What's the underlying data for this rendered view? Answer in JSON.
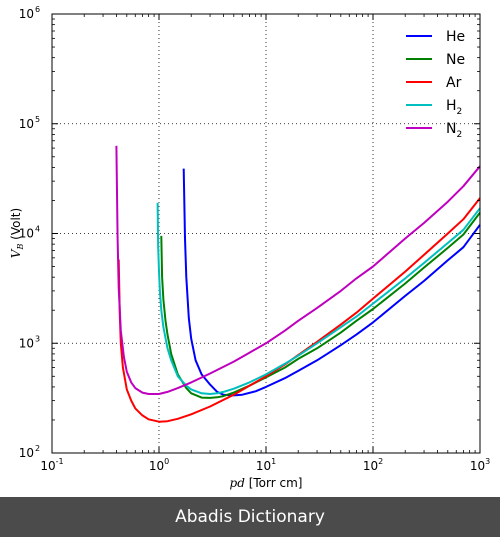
{
  "chart_data": {
    "type": "line",
    "title": "",
    "xlabel_var": "pd",
    "xlabel_unit": " [Torr cm]",
    "ylabel_var": "V",
    "ylabel_sub": "B",
    "ylabel_unit": " (Volt)",
    "xscale": "log",
    "yscale": "log",
    "xlim": [
      0.1,
      1000
    ],
    "ylim": [
      100,
      1000000
    ],
    "x_tick_base": "10",
    "x_tick_exps": [
      "-1",
      "0",
      "1",
      "2",
      "3"
    ],
    "y_tick_base": "10",
    "y_tick_exps": [
      "2",
      "3",
      "4",
      "5",
      "6"
    ],
    "grid": true,
    "legend_position": "top-right",
    "series": [
      {
        "name": "He",
        "sub": "",
        "color": "#0000ff",
        "x": [
          1.7,
          1.75,
          1.8,
          1.9,
          2.0,
          2.2,
          2.5,
          3.0,
          3.5,
          4.0,
          5.0,
          6.0,
          8.0,
          10,
          15,
          20,
          30,
          50,
          70,
          100,
          200,
          300,
          500,
          700,
          1000
        ],
        "y": [
          39000,
          9000,
          4000,
          1700,
          1100,
          700,
          520,
          420,
          360,
          340,
          335,
          340,
          365,
          400,
          480,
          560,
          700,
          960,
          1200,
          1550,
          2700,
          3700,
          5700,
          7500,
          12000
        ]
      },
      {
        "name": "Ne",
        "sub": "",
        "color": "#008000",
        "x": [
          1.05,
          1.07,
          1.1,
          1.15,
          1.2,
          1.3,
          1.5,
          1.8,
          2.0,
          2.5,
          3.0,
          3.5,
          4.0,
          5.0,
          7.0,
          10,
          15,
          20,
          30,
          50,
          70,
          100,
          200,
          300,
          500,
          700,
          1000
        ],
        "y": [
          9500,
          4000,
          2500,
          1600,
          1200,
          800,
          520,
          390,
          350,
          320,
          318,
          322,
          330,
          355,
          410,
          490,
          600,
          720,
          900,
          1250,
          1600,
          2050,
          3500,
          4900,
          7400,
          9800,
          15500
        ]
      },
      {
        "name": "Ar",
        "sub": "",
        "color": "#ff0000",
        "x": [
          0.42,
          0.43,
          0.44,
          0.46,
          0.5,
          0.55,
          0.6,
          0.7,
          0.8,
          1.0,
          1.2,
          1.5,
          2.0,
          3.0,
          5.0,
          7.0,
          10,
          15,
          20,
          30,
          50,
          70,
          100,
          200,
          300,
          500,
          700,
          1000
        ],
        "y": [
          5800,
          1800,
          1000,
          600,
          380,
          300,
          255,
          220,
          203,
          193,
          195,
          205,
          225,
          265,
          340,
          410,
          500,
          640,
          780,
          1030,
          1480,
          1900,
          2550,
          4500,
          6400,
          10000,
          13500,
          21000
        ]
      },
      {
        "name": "H",
        "sub": "2",
        "color": "#00bfbf",
        "x": [
          0.97,
          0.98,
          1.0,
          1.02,
          1.05,
          1.1,
          1.2,
          1.3,
          1.5,
          1.8,
          2.0,
          2.5,
          3.0,
          3.5,
          4.0,
          5.0,
          7.0,
          10,
          15,
          20,
          30,
          50,
          70,
          100,
          200,
          300,
          500,
          700,
          1000
        ],
        "y": [
          19000,
          8000,
          4500,
          3000,
          2000,
          1400,
          900,
          700,
          500,
          410,
          380,
          350,
          345,
          350,
          360,
          385,
          440,
          520,
          650,
          770,
          1000,
          1400,
          1750,
          2300,
          3900,
          5400,
          8200,
          10800,
          17000
        ]
      },
      {
        "name": "N",
        "sub": "2",
        "color": "#bf00bf",
        "x": [
          0.4,
          0.41,
          0.42,
          0.44,
          0.47,
          0.5,
          0.55,
          0.6,
          0.7,
          0.8,
          1.0,
          1.2,
          1.5,
          2.0,
          3.0,
          5.0,
          7.0,
          10,
          15,
          20,
          30,
          50,
          70,
          100,
          200,
          300,
          500,
          700,
          1000
        ],
        "y": [
          63000,
          9000,
          3200,
          1300,
          750,
          550,
          440,
          390,
          355,
          345,
          345,
          360,
          390,
          440,
          530,
          680,
          820,
          1000,
          1300,
          1600,
          2100,
          3000,
          3900,
          5000,
          9000,
          12500,
          19500,
          27000,
          41000
        ]
      }
    ]
  },
  "footer": {
    "brand": "Abadis Dictionary"
  }
}
